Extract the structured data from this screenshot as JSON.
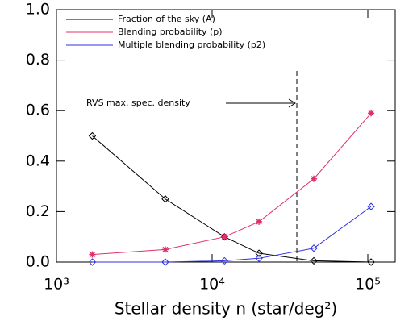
{
  "chart_data": {
    "type": "line",
    "x_label": "Stellar density n (star/deg²)",
    "x": [
      1700,
      5000,
      12000,
      20000,
      45000,
      105000
    ],
    "series": [
      {
        "name": "Fraction of the sky (A)",
        "color": "#000000",
        "marker": "diamond",
        "values": [
          0.5,
          0.25,
          0.1,
          0.035,
          0.005,
          0.0
        ]
      },
      {
        "name": "Blending probability (p)",
        "color": "#e0306a",
        "marker": "asterisk",
        "values": [
          0.03,
          0.05,
          0.1,
          0.16,
          0.33,
          0.59
        ]
      },
      {
        "name": "Multiple blending probability (p2)",
        "color": "#3030e0",
        "marker": "diamond",
        "values": [
          0.0,
          0.0,
          0.005,
          0.015,
          0.055,
          0.22
        ]
      }
    ],
    "annotation": {
      "text": "RVS max. spec. density",
      "x": 35000
    },
    "xscale": "log",
    "xlim": [
      1000,
      150000
    ],
    "xticks": [
      {
        "value": 1000,
        "label": "10³"
      },
      {
        "value": 10000,
        "label": "10⁴"
      },
      {
        "value": 100000,
        "label": "10⁵"
      }
    ],
    "ylim": [
      0,
      1
    ],
    "yticks": [
      {
        "value": 0,
        "label": "0.0"
      },
      0.2,
      0.4,
      0.6,
      0.8,
      {
        "value": 1,
        "label": "1.0"
      }
    ],
    "legend": "upper left"
  }
}
